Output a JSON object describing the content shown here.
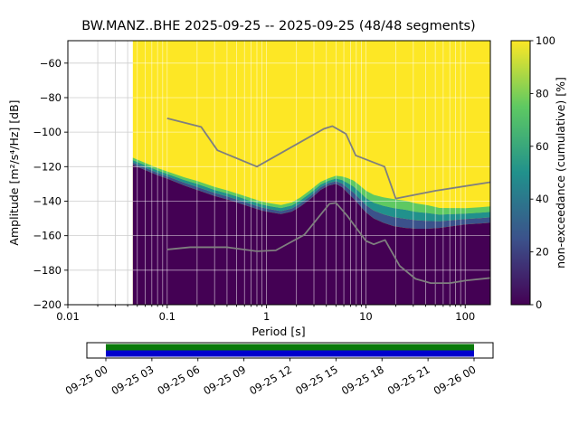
{
  "chart_data": {
    "type": "heatmap",
    "station_title": "BW.MANZ..BHE   2025-09-25 -- 2025-09-25  (48/48 segments)",
    "xlabel": "Period [s]",
    "ylabel": "Amplitude [m²/s⁴/Hz] [dB]",
    "xlim": [
      0.01,
      179
    ],
    "ylim": [
      -200,
      -47
    ],
    "xticks": [
      0.01,
      0.1,
      1,
      10,
      100
    ],
    "yticks": [
      -60,
      -80,
      -100,
      -120,
      -140,
      -160,
      -180,
      -200
    ],
    "grid": true,
    "data_start_period": 0.045,
    "colormap": {
      "name": "viridis",
      "stops": [
        "#440154",
        "#3b528b",
        "#21918c",
        "#5ec962",
        "#fde725"
      ]
    },
    "colorbar": {
      "label": "non-exceedance (cumulative) [%]",
      "ticks": [
        0,
        20,
        40,
        60,
        80,
        100
      ],
      "range": [
        0,
        100
      ]
    },
    "distribution_boundary": {
      "points": [
        [
          0.045,
          -119,
          4
        ],
        [
          0.06,
          -122,
          4
        ],
        [
          0.08,
          -125,
          4
        ],
        [
          0.1,
          -127,
          4
        ],
        [
          0.15,
          -131,
          4.5
        ],
        [
          0.2,
          -133.5,
          5
        ],
        [
          0.3,
          -137,
          5
        ],
        [
          0.4,
          -139,
          5
        ],
        [
          0.55,
          -141.5,
          5
        ],
        [
          0.7,
          -143.5,
          5
        ],
        [
          0.9,
          -145.5,
          5
        ],
        [
          1.1,
          -146.5,
          5
        ],
        [
          1.4,
          -147.5,
          5
        ],
        [
          1.8,
          -146,
          5
        ],
        [
          2.2,
          -143,
          5
        ],
        [
          2.8,
          -138.5,
          5
        ],
        [
          3.5,
          -133.5,
          4.5
        ],
        [
          4.2,
          -131,
          4
        ],
        [
          5,
          -130,
          4.5
        ],
        [
          5.8,
          -132,
          6
        ],
        [
          6.5,
          -135,
          8
        ],
        [
          7.5,
          -138.5,
          10
        ],
        [
          8.5,
          -142,
          11
        ],
        [
          10,
          -146.5,
          12
        ],
        [
          12,
          -150,
          13
        ],
        [
          15,
          -152.5,
          14
        ],
        [
          19,
          -154.5,
          15
        ],
        [
          25,
          -155.5,
          15
        ],
        [
          32,
          -156,
          14
        ],
        [
          42,
          -156,
          13
        ],
        [
          55,
          -155.5,
          11
        ],
        [
          75,
          -154.5,
          10
        ],
        [
          100,
          -153.5,
          9
        ],
        [
          140,
          -153,
          9
        ],
        [
          179,
          -152.5,
          9
        ]
      ]
    },
    "noise_models": {
      "high_noise_model": [
        [
          0.1,
          -92
        ],
        [
          0.22,
          -97
        ],
        [
          0.32,
          -110.5
        ],
        [
          0.8,
          -120
        ],
        [
          3.8,
          -98
        ],
        [
          4.6,
          -96.5
        ],
        [
          6.3,
          -101
        ],
        [
          7.9,
          -113.5
        ],
        [
          15.4,
          -120
        ],
        [
          20,
          -138.5
        ],
        [
          50,
          -134
        ],
        [
          179,
          -129
        ]
      ],
      "low_noise_model": [
        [
          0.1,
          -168
        ],
        [
          0.17,
          -166.7
        ],
        [
          0.4,
          -166.7
        ],
        [
          0.8,
          -169
        ],
        [
          1.24,
          -168.5
        ],
        [
          2.4,
          -159.5
        ],
        [
          4.3,
          -141.5
        ],
        [
          5,
          -141
        ],
        [
          6.5,
          -148.5
        ],
        [
          10,
          -163
        ],
        [
          12,
          -165
        ],
        [
          15.6,
          -162.5
        ],
        [
          21.9,
          -177.5
        ],
        [
          31.6,
          -185
        ],
        [
          45,
          -187.5
        ],
        [
          70,
          -187.5
        ],
        [
          101,
          -186
        ],
        [
          179,
          -184.5
        ]
      ]
    },
    "timeline": {
      "tick_labels": [
        "09-25 00",
        "09-25 03",
        "09-25 06",
        "09-25 09",
        "09-25 12",
        "09-25 15",
        "09-25 18",
        "09-25 21",
        "09-26 00"
      ],
      "coverage_colors": [
        "#0a7a0a",
        "#0000cd"
      ]
    }
  }
}
